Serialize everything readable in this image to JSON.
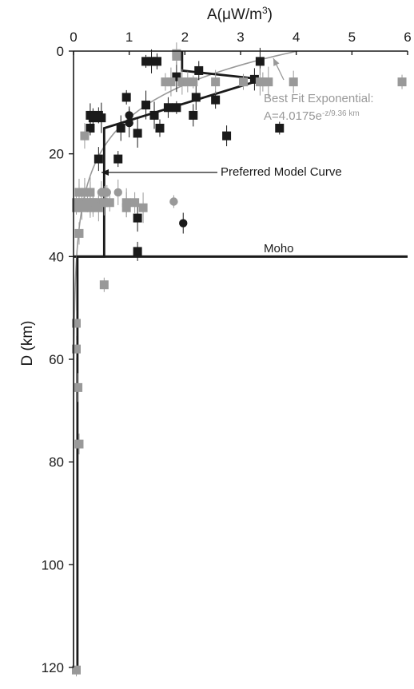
{
  "chart_data": {
    "type": "scatter",
    "xlabel_prefix": "A(μW/m",
    "xlabel_sup": "3",
    "xlabel_suffix": ")",
    "ylabel": "D (km)",
    "xlim": [
      0,
      6
    ],
    "ylim": [
      0,
      120
    ],
    "x_ticks": [
      0,
      1,
      2,
      3,
      4,
      5,
      6
    ],
    "y_ticks": [
      0,
      20,
      40,
      60,
      80,
      100,
      120
    ],
    "y_inverted": true,
    "grid": false,
    "colors": {
      "black": "#1a1a1a",
      "gray": "#999999"
    },
    "annotations": {
      "best_fit_line1": "Best Fit Exponential:",
      "best_fit_line2_base": "A=4.0175e",
      "best_fit_line2_sup": "-z/9.36 km",
      "preferred": "Preferred Model Curve",
      "moho": "Moho"
    },
    "moho_depth": 40,
    "best_fit_curve": {
      "A0": 4.0175,
      "scale_km": 9.36,
      "color": "#999999"
    },
    "preferred_model": {
      "color": "#1a1a1a",
      "points": [
        [
          1.95,
          0
        ],
        [
          1.95,
          3.8
        ],
        [
          3.4,
          5.5
        ],
        [
          0.55,
          15
        ],
        [
          0.55,
          40
        ],
        [
          0.07,
          40
        ],
        [
          0.07,
          120
        ]
      ]
    },
    "series": [
      {
        "marker": "square",
        "color": "#1a1a1a",
        "points": [
          [
            1.3,
            2
          ],
          [
            1.4,
            2
          ],
          [
            1.5,
            2
          ],
          [
            3.35,
            2
          ],
          [
            2.25,
            3.8
          ],
          [
            1.85,
            5
          ],
          [
            3.25,
            5.5
          ],
          [
            0.95,
            9
          ],
          [
            2.2,
            9
          ],
          [
            2.55,
            9.5
          ],
          [
            1.3,
            10.5
          ],
          [
            1.7,
            11
          ],
          [
            1.85,
            11
          ],
          [
            0.3,
            12.5
          ],
          [
            0.45,
            12.5
          ],
          [
            1.45,
            12.5
          ],
          [
            0.35,
            13
          ],
          [
            0.5,
            13
          ],
          [
            2.15,
            12.5
          ],
          [
            0.3,
            15
          ],
          [
            0.85,
            15
          ],
          [
            1.55,
            15
          ],
          [
            1.15,
            16
          ],
          [
            2.75,
            16.5
          ],
          [
            3.7,
            15
          ],
          [
            0.45,
            21
          ],
          [
            0.8,
            21
          ],
          [
            1.15,
            32.5
          ],
          [
            1.15,
            39
          ]
        ]
      },
      {
        "marker": "circle",
        "color": "#1a1a1a",
        "points": [
          [
            1.0,
            12.5
          ],
          [
            1.0,
            14
          ],
          [
            1.97,
            33.5
          ]
        ]
      },
      {
        "marker": "square",
        "color": "#999999",
        "points": [
          [
            1.85,
            0.5
          ],
          [
            1.85,
            1
          ],
          [
            1.95,
            6
          ],
          [
            1.65,
            6
          ],
          [
            1.75,
            6
          ],
          [
            2.05,
            6
          ],
          [
            2.15,
            6
          ],
          [
            2.55,
            6
          ],
          [
            3.05,
            6
          ],
          [
            3.35,
            6
          ],
          [
            3.4,
            6
          ],
          [
            3.5,
            6
          ],
          [
            3.95,
            6
          ],
          [
            5.9,
            6
          ],
          [
            0.2,
            16.5
          ],
          [
            0.1,
            27.5
          ],
          [
            0.2,
            27.5
          ],
          [
            0.3,
            27.5
          ],
          [
            0.55,
            27.5
          ],
          [
            0.05,
            29.5
          ],
          [
            0.1,
            29.5
          ],
          [
            0.15,
            29.5
          ],
          [
            0.25,
            29.5
          ],
          [
            0.3,
            29.5
          ],
          [
            0.35,
            29.5
          ],
          [
            0.45,
            29.5
          ],
          [
            0.55,
            29.5
          ],
          [
            0.65,
            29.5
          ],
          [
            0.95,
            29.5
          ],
          [
            1.1,
            29.5
          ],
          [
            0.05,
            30.5
          ],
          [
            0.15,
            30.5
          ],
          [
            0.3,
            30.5
          ],
          [
            0.45,
            30.5
          ],
          [
            0.95,
            30.5
          ],
          [
            1.25,
            30.5
          ],
          [
            0.1,
            35.5
          ],
          [
            0.55,
            45.5
          ],
          [
            0.05,
            53
          ],
          [
            0.05,
            58
          ],
          [
            0.08,
            65.5
          ],
          [
            0.1,
            76.5
          ],
          [
            0.05,
            120.5
          ]
        ]
      },
      {
        "marker": "circle",
        "color": "#999999",
        "points": [
          [
            0.1,
            27.5
          ],
          [
            0.2,
            27.5
          ],
          [
            0.3,
            27.5
          ],
          [
            0.5,
            27.5
          ],
          [
            0.6,
            27.5
          ],
          [
            0.8,
            27.5
          ],
          [
            0.1,
            29.5
          ],
          [
            0.35,
            29.5
          ],
          [
            0.95,
            29.5
          ],
          [
            1.8,
            29.3
          ]
        ]
      }
    ]
  }
}
